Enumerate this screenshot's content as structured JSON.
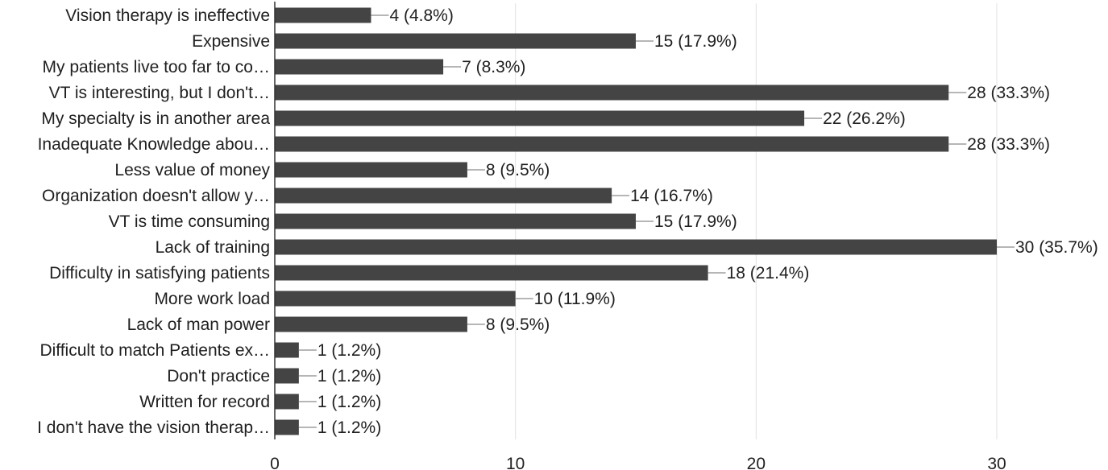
{
  "chart_data": {
    "type": "bar",
    "orientation": "horizontal",
    "categories": [
      "Vision therapy is ineffective",
      "Expensive",
      "My patients live too far to co…",
      "VT is interesting, but I don't…",
      "My specialty is in another area",
      "Inadequate Knowledge abou…",
      "Less value of money",
      "Organization doesn't allow y…",
      "VT is time consuming",
      "Lack of training",
      "Difficulty in satisfying patients",
      "More work load",
      "Lack of man power",
      "Difficult to match Patients ex…",
      "Don't practice",
      "Written for record",
      "I don't have the vision therap…"
    ],
    "values": [
      4,
      15,
      7,
      28,
      22,
      28,
      8,
      14,
      15,
      30,
      18,
      10,
      8,
      1,
      1,
      1,
      1
    ],
    "data_labels": [
      "4 (4.8%)",
      "15 (17.9%)",
      "7 (8.3%)",
      "28 (33.3%)",
      "22 (26.2%)",
      "28 (33.3%)",
      "8 (9.5%)",
      "14 (16.7%)",
      "15 (17.9%)",
      "30 (35.7%)",
      "18 (21.4%)",
      "10 (11.9%)",
      "8 (9.5%)",
      "1 (1.2%)",
      "1 (1.2%)",
      "1 (1.2%)",
      "1 (1.2%)"
    ],
    "xlim": [
      0,
      30
    ],
    "xticks": [
      0,
      10,
      20,
      30
    ],
    "grid": true,
    "bar_color": "#444444",
    "title": "",
    "xlabel": "",
    "ylabel": ""
  }
}
